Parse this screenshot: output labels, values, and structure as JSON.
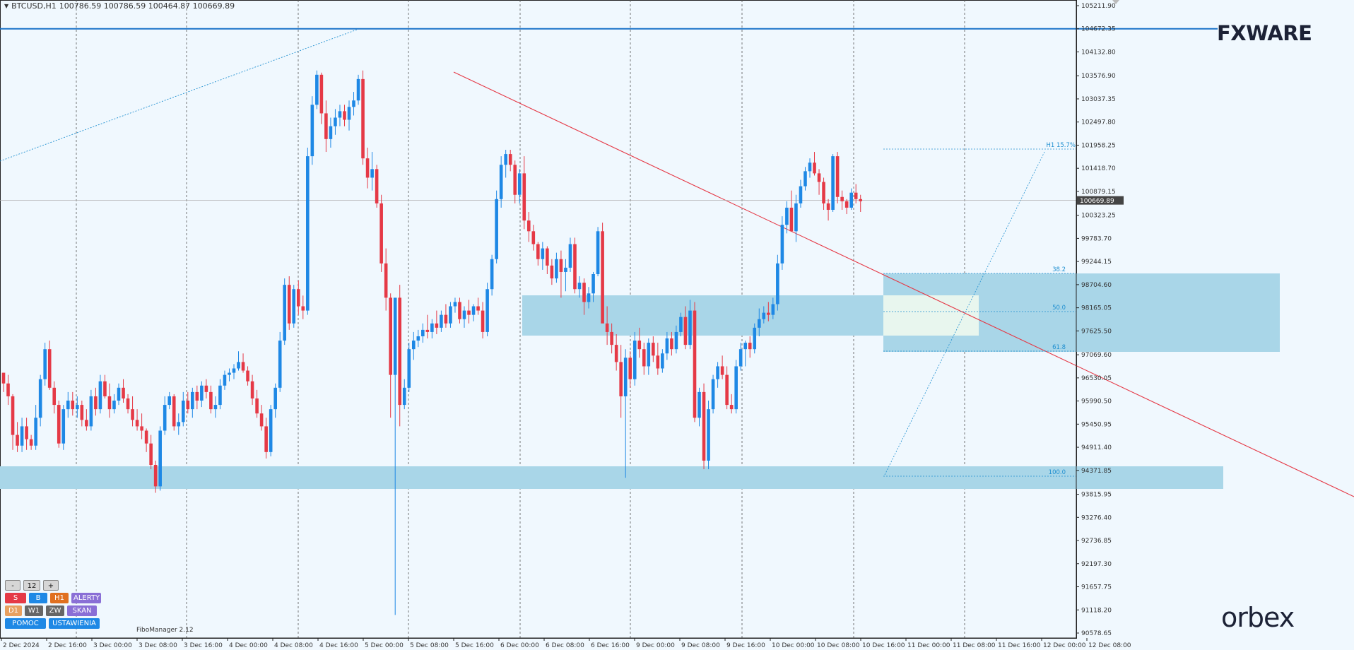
{
  "header": {
    "symbol": "BTCUSD,H1",
    "ohlc": "100786.59 100786.59 100464.87 100669.89"
  },
  "brand": {
    "fxware": "FXWARE",
    "orbex": "orbex"
  },
  "price_axis": [
    "105211.90",
    "104672.35",
    "104132.80",
    "103576.90",
    "103037.35",
    "102497.80",
    "101958.25",
    "101418.70",
    "100879.15",
    "100323.25",
    "99783.70",
    "99244.15",
    "98704.60",
    "98165.05",
    "97625.50",
    "97069.60",
    "96530.05",
    "95990.50",
    "95450.95",
    "94911.40",
    "94371.85",
    "93815.95",
    "93276.40",
    "92736.85",
    "92197.30",
    "91657.75",
    "91118.20",
    "90578.65"
  ],
  "current_price": "100669.89",
  "time_axis": [
    "2 Dec 2024",
    "2 Dec 16:00",
    "3 Dec 00:00",
    "3 Dec 08:00",
    "3 Dec 16:00",
    "4 Dec 00:00",
    "4 Dec 08:00",
    "4 Dec 16:00",
    "5 Dec 00:00",
    "5 Dec 08:00",
    "5 Dec 16:00",
    "6 Dec 00:00",
    "6 Dec 08:00",
    "6 Dec 16:00",
    "9 Dec 00:00",
    "9 Dec 08:00",
    "9 Dec 16:00",
    "10 Dec 00:00",
    "10 Dec 08:00",
    "10 Dec 16:00",
    "11 Dec 00:00",
    "11 Dec 08:00",
    "11 Dec 16:00",
    "12 Dec 00:00",
    "12 Dec 08:00"
  ],
  "fibo": {
    "top_label": "H1 15.7%",
    "levels": [
      "38.2",
      "50.0",
      "61.8",
      "100.0"
    ]
  },
  "panel": {
    "minus": "-",
    "period": "12",
    "plus": "+",
    "row2": [
      "S",
      "B",
      "H1",
      "ALERTY"
    ],
    "row3": [
      "D1",
      "W1",
      "ZW",
      "SKAN"
    ],
    "row4": [
      "POMOC",
      "USTAWIENIA"
    ],
    "fibomanager": "FiboManager 2.12"
  },
  "colors": {
    "bull": "#1e88e5",
    "bear": "#e53946",
    "zone": "#a9d6e8",
    "zone_light": "#eef9ee",
    "trend": "#e53946",
    "hline": "#1a73c9"
  },
  "chart_data": {
    "type": "candlestick",
    "symbol": "BTCUSD",
    "timeframe": "H1",
    "ylim": [
      90578.65,
      105211.9
    ],
    "candles_ohlc": [
      [
        96650,
        96650,
        96200,
        96400
      ],
      [
        96400,
        96600,
        95900,
        96100
      ],
      [
        96100,
        96150,
        94850,
        95200
      ],
      [
        95200,
        95500,
        94800,
        94950
      ],
      [
        94950,
        95600,
        94800,
        95400
      ],
      [
        95400,
        95600,
        94850,
        95100
      ],
      [
        95100,
        95200,
        94850,
        94950
      ],
      [
        94950,
        95900,
        94850,
        95600
      ],
      [
        95600,
        96600,
        95400,
        96500
      ],
      [
        96500,
        97350,
        96350,
        97200
      ],
      [
        97200,
        97400,
        96250,
        96300
      ],
      [
        96300,
        96450,
        95700,
        95900
      ],
      [
        95900,
        96000,
        94900,
        95000
      ],
      [
        95000,
        95900,
        94850,
        95800
      ],
      [
        95800,
        96200,
        95600,
        96000
      ],
      [
        96000,
        96200,
        95650,
        95800
      ],
      [
        95800,
        96100,
        95600,
        95900
      ],
      [
        95900,
        96000,
        95400,
        95550
      ],
      [
        95550,
        95800,
        95300,
        95400
      ],
      [
        95400,
        96250,
        95300,
        96100
      ],
      [
        96100,
        96300,
        95650,
        95800
      ],
      [
        95800,
        96600,
        95700,
        96450
      ],
      [
        96450,
        96600,
        96050,
        96100
      ],
      [
        96100,
        96400,
        95600,
        95800
      ],
      [
        95800,
        96150,
        95700,
        96000
      ],
      [
        96000,
        96400,
        95900,
        96300
      ],
      [
        96300,
        96500,
        95950,
        96050
      ],
      [
        96050,
        96150,
        95700,
        95800
      ],
      [
        95800,
        96100,
        95400,
        95550
      ],
      [
        95550,
        95800,
        95300,
        95400
      ],
      [
        95400,
        95700,
        95100,
        95300
      ],
      [
        95300,
        95350,
        94800,
        95000
      ],
      [
        95000,
        95200,
        94400,
        94500
      ],
      [
        94500,
        94600,
        93850,
        94000
      ],
      [
        94000,
        95400,
        93900,
        95300
      ],
      [
        95300,
        96100,
        95200,
        95900
      ],
      [
        95900,
        96200,
        95800,
        96100
      ],
      [
        96100,
        96150,
        95300,
        95400
      ],
      [
        95400,
        95700,
        95200,
        95500
      ],
      [
        95500,
        96200,
        95400,
        96000
      ],
      [
        96000,
        96200,
        95700,
        95800
      ],
      [
        95800,
        96300,
        95600,
        96200
      ],
      [
        96200,
        96350,
        95800,
        96000
      ],
      [
        96000,
        96450,
        95850,
        96350
      ],
      [
        96350,
        96500,
        96050,
        96200
      ],
      [
        96200,
        96350,
        95700,
        95800
      ],
      [
        95800,
        96100,
        95600,
        95900
      ],
      [
        95900,
        96500,
        95800,
        96350
      ],
      [
        96350,
        96700,
        96250,
        96600
      ],
      [
        96600,
        96750,
        96450,
        96650
      ],
      [
        96650,
        96850,
        96500,
        96750
      ],
      [
        96750,
        97150,
        96700,
        96900
      ],
      [
        96900,
        97100,
        96650,
        96700
      ],
      [
        96700,
        96800,
        96350,
        96450
      ],
      [
        96450,
        96600,
        95900,
        96050
      ],
      [
        96050,
        96250,
        95600,
        95700
      ],
      [
        95700,
        95900,
        95300,
        95400
      ],
      [
        95400,
        95600,
        94650,
        94800
      ],
      [
        94800,
        95900,
        94700,
        95800
      ],
      [
        95800,
        96400,
        95600,
        96300
      ],
      [
        96300,
        97600,
        96200,
        97400
      ],
      [
        97400,
        98850,
        97300,
        98700
      ],
      [
        98700,
        98900,
        97650,
        97800
      ],
      [
        97800,
        98700,
        97700,
        98600
      ],
      [
        98600,
        98800,
        98000,
        98200
      ],
      [
        98200,
        98450,
        97900,
        98100
      ],
      [
        98100,
        101900,
        98000,
        101700
      ],
      [
        101700,
        103100,
        101500,
        102900
      ],
      [
        102900,
        103700,
        102800,
        103600
      ],
      [
        103600,
        103650,
        102450,
        102700
      ],
      [
        102700,
        103000,
        101800,
        102100
      ],
      [
        102100,
        102600,
        101900,
        102400
      ],
      [
        102400,
        102800,
        102200,
        102600
      ],
      [
        102600,
        102900,
        102400,
        102750
      ],
      [
        102750,
        102900,
        102400,
        102550
      ],
      [
        102550,
        103000,
        102300,
        102850
      ],
      [
        102850,
        103200,
        102650,
        103000
      ],
      [
        103000,
        103600,
        102900,
        103500
      ],
      [
        103500,
        103700,
        101500,
        101650
      ],
      [
        101650,
        101900,
        100950,
        101200
      ],
      [
        101200,
        101800,
        100900,
        101400
      ],
      [
        101400,
        101500,
        100500,
        100600
      ],
      [
        100600,
        100800,
        99000,
        99200
      ],
      [
        99200,
        99550,
        98100,
        98400
      ],
      [
        98400,
        98500,
        95600,
        96600
      ],
      [
        96600,
        96800,
        91000,
        98400
      ],
      [
        98400,
        98700,
        95400,
        95900
      ],
      [
        95900,
        96500,
        95800,
        96300
      ],
      [
        96300,
        97350,
        96200,
        97200
      ],
      [
        97200,
        97600,
        96950,
        97400
      ],
      [
        97400,
        97650,
        97250,
        97500
      ],
      [
        97500,
        97800,
        97350,
        97650
      ],
      [
        97650,
        98000,
        97450,
        97600
      ],
      [
        97600,
        97900,
        97450,
        97800
      ],
      [
        97800,
        98100,
        97550,
        97700
      ],
      [
        97700,
        98100,
        97600,
        98000
      ],
      [
        98000,
        98250,
        97700,
        97800
      ],
      [
        97800,
        98300,
        97700,
        98200
      ],
      [
        98200,
        98400,
        98050,
        98300
      ],
      [
        98300,
        98400,
        97800,
        97900
      ],
      [
        97900,
        98200,
        97700,
        98100
      ],
      [
        98100,
        98350,
        97800,
        98000
      ],
      [
        98000,
        98250,
        97850,
        98200
      ],
      [
        98200,
        98400,
        98000,
        98100
      ],
      [
        98100,
        98300,
        97450,
        97600
      ],
      [
        97600,
        98750,
        97500,
        98600
      ],
      [
        98600,
        99400,
        98450,
        99300
      ],
      [
        99300,
        100900,
        99200,
        100700
      ],
      [
        100700,
        101700,
        100500,
        101500
      ],
      [
        101500,
        101850,
        101200,
        101750
      ],
      [
        101750,
        101850,
        101350,
        101500
      ],
      [
        101500,
        101600,
        100600,
        100800
      ],
      [
        100800,
        101400,
        100600,
        101300
      ],
      [
        101300,
        101700,
        100000,
        100200
      ],
      [
        100200,
        100400,
        99700,
        99950
      ],
      [
        99950,
        100100,
        99500,
        99650
      ],
      [
        99650,
        99700,
        99150,
        99300
      ],
      [
        99300,
        99700,
        99050,
        99550
      ],
      [
        99550,
        99600,
        98950,
        99150
      ],
      [
        99150,
        99300,
        98700,
        98850
      ],
      [
        98850,
        99450,
        98750,
        99300
      ],
      [
        99300,
        99500,
        98400,
        99000
      ],
      [
        99000,
        99300,
        98550,
        99100
      ],
      [
        99100,
        99800,
        99000,
        99650
      ],
      [
        99650,
        99800,
        98500,
        98600
      ],
      [
        98600,
        98900,
        98400,
        98750
      ],
      [
        98750,
        98850,
        98000,
        98300
      ],
      [
        98300,
        98650,
        98150,
        98500
      ],
      [
        98500,
        99000,
        98300,
        98950
      ],
      [
        98950,
        100050,
        98900,
        99950
      ],
      [
        99950,
        100150,
        99500,
        97800
      ],
      [
        97800,
        98200,
        97300,
        97600
      ],
      [
        97600,
        97800,
        97100,
        97300
      ],
      [
        97300,
        97550,
        96700,
        96900
      ],
      [
        96900,
        97300,
        95600,
        96100
      ],
      [
        96100,
        97200,
        94200,
        97000
      ],
      [
        97000,
        97150,
        96300,
        96500
      ],
      [
        96500,
        97600,
        96350,
        97400
      ],
      [
        97400,
        97700,
        97000,
        97200
      ],
      [
        97200,
        97350,
        96600,
        96800
      ],
      [
        96800,
        97450,
        96600,
        97350
      ],
      [
        97350,
        97500,
        96900,
        97050
      ],
      [
        97050,
        97350,
        96600,
        96750
      ],
      [
        96750,
        97200,
        96650,
        97100
      ],
      [
        97100,
        97600,
        96950,
        97450
      ],
      [
        97450,
        97600,
        97050,
        97200
      ],
      [
        97200,
        97750,
        97100,
        97600
      ],
      [
        97600,
        98050,
        97500,
        97950
      ],
      [
        97950,
        98200,
        97200,
        97300
      ],
      [
        97300,
        98350,
        97200,
        98100
      ],
      [
        98100,
        98300,
        95500,
        95600
      ],
      [
        95600,
        96300,
        95400,
        96200
      ],
      [
        96200,
        96400,
        94400,
        94600
      ],
      [
        94600,
        96000,
        94400,
        95800
      ],
      [
        95800,
        96600,
        95700,
        96500
      ],
      [
        96500,
        96900,
        96300,
        96800
      ],
      [
        96800,
        97050,
        96500,
        96600
      ],
      [
        96600,
        96800,
        95800,
        95900
      ],
      [
        95900,
        96150,
        95700,
        95800
      ],
      [
        95800,
        96950,
        95700,
        96800
      ],
      [
        96800,
        97350,
        96700,
        97200
      ],
      [
        97200,
        97400,
        96800,
        97350
      ],
      [
        97350,
        97500,
        97000,
        97200
      ],
      [
        97200,
        97800,
        97100,
        97700
      ],
      [
        97700,
        98150,
        97500,
        97900
      ],
      [
        97900,
        98200,
        97800,
        98050
      ],
      [
        98050,
        98300,
        97850,
        98000
      ],
      [
        98000,
        98400,
        97900,
        98250
      ],
      [
        98250,
        99400,
        98100,
        99200
      ],
      [
        99200,
        100300,
        99050,
        100100
      ],
      [
        100100,
        100650,
        99900,
        100500
      ],
      [
        100500,
        100900,
        100050,
        99950
      ],
      [
        99950,
        100800,
        99700,
        100600
      ],
      [
        100600,
        101150,
        100500,
        101000
      ],
      [
        101000,
        101450,
        100900,
        101350
      ],
      [
        101350,
        101650,
        101200,
        101550
      ],
      [
        101550,
        101800,
        101250,
        101300
      ],
      [
        101300,
        101400,
        100800,
        101100
      ],
      [
        101100,
        101200,
        100450,
        100600
      ],
      [
        100600,
        100700,
        100200,
        100450
      ],
      [
        100450,
        101750,
        100400,
        101700
      ],
      [
        101700,
        101800,
        100600,
        100750
      ],
      [
        100750,
        100900,
        100450,
        100650
      ],
      [
        100650,
        100700,
        100350,
        100500
      ],
      [
        100500,
        100950,
        100450,
        100850
      ],
      [
        100850,
        101050,
        100600,
        100700
      ],
      [
        100700,
        100800,
        100400,
        100650
      ]
    ],
    "annotations": {
      "horizontal_level": 104672.35,
      "fibo_levels": {
        "38.2": 98870,
        "50.0": 98165,
        "61.8": 97280,
        "100.0": 94300
      }
    }
  }
}
